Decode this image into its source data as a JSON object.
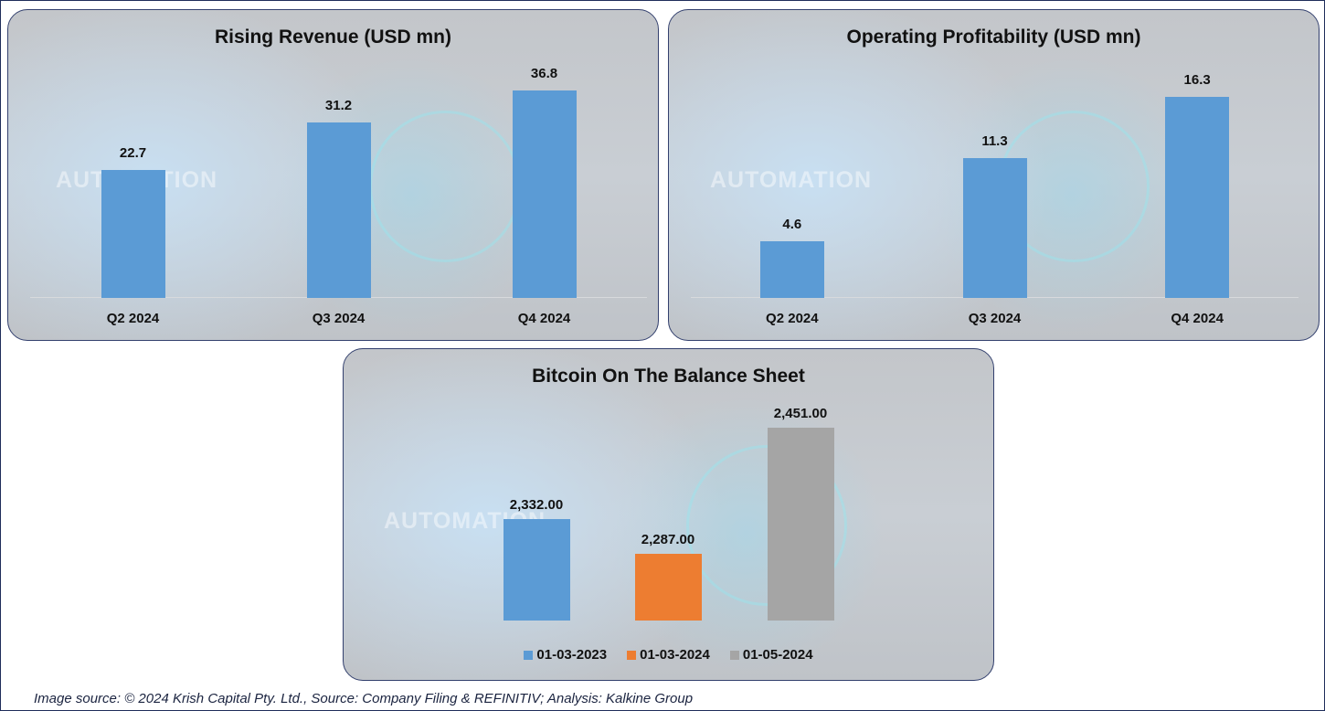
{
  "chart_data": [
    {
      "type": "bar",
      "title": "Rising Revenue (USD mn)",
      "categories": [
        "Q2 2024",
        "Q3 2024",
        "Q4 2024"
      ],
      "values": [
        22.7,
        31.2,
        36.8
      ],
      "labels": [
        "22.7",
        "31.2",
        "36.8"
      ],
      "ylim": [
        0,
        43
      ],
      "color": "#5b9bd5",
      "grid": false,
      "xlabel": "",
      "ylabel": ""
    },
    {
      "type": "bar",
      "title": "Operating Profitability (USD mn)",
      "categories": [
        "Q2 2024",
        "Q3 2024",
        "Q4 2024"
      ],
      "values": [
        4.6,
        11.3,
        16.3
      ],
      "labels": [
        "4.6",
        "11.3",
        "16.3"
      ],
      "ylim": [
        0,
        19.6
      ],
      "color": "#5b9bd5",
      "grid": false,
      "xlabel": "",
      "ylabel": ""
    },
    {
      "type": "bar",
      "title": "Bitcoin On The Balance Sheet",
      "series": [
        {
          "name": "01-03-2023",
          "values": [
            2332.0
          ],
          "label": "2,332.00",
          "color": "#5b9bd5"
        },
        {
          "name": "01-03-2024",
          "values": [
            2287.0
          ],
          "label": "2,287.00",
          "color": "#ed7d31"
        },
        {
          "name": "01-05-2024",
          "values": [
            2451.0
          ],
          "label": "2,451.00",
          "color": "#a5a5a5"
        }
      ],
      "ylim": [
        2200,
        2500
      ],
      "legend": "bottom",
      "grid": false
    }
  ],
  "watermark": "AUTOMATION",
  "footer": "Image source: © 2024 Krish Capital Pty. Ltd., Source: Company Filing & REFINITIV; Analysis: Kalkine Group"
}
